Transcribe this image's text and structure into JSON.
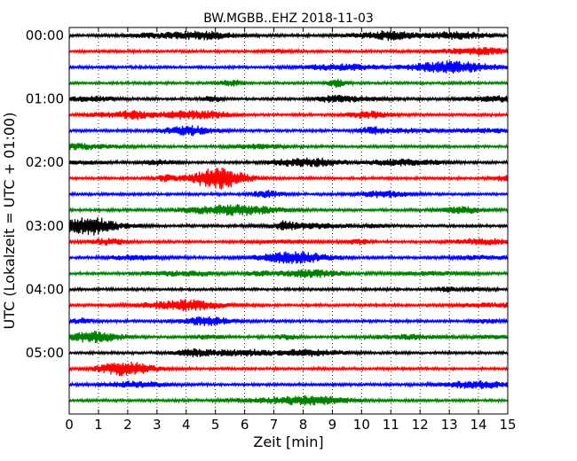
{
  "chart_data": {
    "type": "line",
    "title": "BW.MGBB..EHZ 2018-11-03",
    "xlabel": "Zeit  [min]",
    "ylabel": "UTC (Lokalzeit = UTC + 01:00)",
    "xlim": [
      0,
      15
    ],
    "x_ticks": [
      "0",
      "1",
      "2",
      "3",
      "4",
      "5",
      "6",
      "7",
      "8",
      "9",
      "10",
      "11",
      "12",
      "13",
      "14",
      "15"
    ],
    "y_ticks": [
      "00:00",
      "01:00",
      "02:00",
      "03:00",
      "04:00",
      "05:00"
    ],
    "grid": "vertical dotted",
    "trace_interval_minutes": 15,
    "series_colors": [
      "#000000",
      "#ff0000",
      "#0000ff",
      "#008000"
    ],
    "series": [
      {
        "start": "00:00",
        "color": "#000000"
      },
      {
        "start": "00:15",
        "color": "#ff0000"
      },
      {
        "start": "00:30",
        "color": "#0000ff"
      },
      {
        "start": "00:45",
        "color": "#008000"
      },
      {
        "start": "01:00",
        "color": "#000000"
      },
      {
        "start": "01:15",
        "color": "#ff0000"
      },
      {
        "start": "01:30",
        "color": "#0000ff"
      },
      {
        "start": "01:45",
        "color": "#008000"
      },
      {
        "start": "02:00",
        "color": "#000000"
      },
      {
        "start": "02:15",
        "color": "#ff0000"
      },
      {
        "start": "02:30",
        "color": "#0000ff"
      },
      {
        "start": "02:45",
        "color": "#008000"
      },
      {
        "start": "03:00",
        "color": "#000000"
      },
      {
        "start": "03:15",
        "color": "#ff0000"
      },
      {
        "start": "03:30",
        "color": "#0000ff"
      },
      {
        "start": "03:45",
        "color": "#008000"
      },
      {
        "start": "04:00",
        "color": "#000000"
      },
      {
        "start": "04:15",
        "color": "#ff0000"
      },
      {
        "start": "04:30",
        "color": "#0000ff"
      },
      {
        "start": "04:45",
        "color": "#008000"
      },
      {
        "start": "05:00",
        "color": "#000000"
      },
      {
        "start": "05:15",
        "color": "#ff0000"
      },
      {
        "start": "05:30",
        "color": "#0000ff"
      },
      {
        "start": "05:45",
        "color": "#008000"
      }
    ]
  }
}
